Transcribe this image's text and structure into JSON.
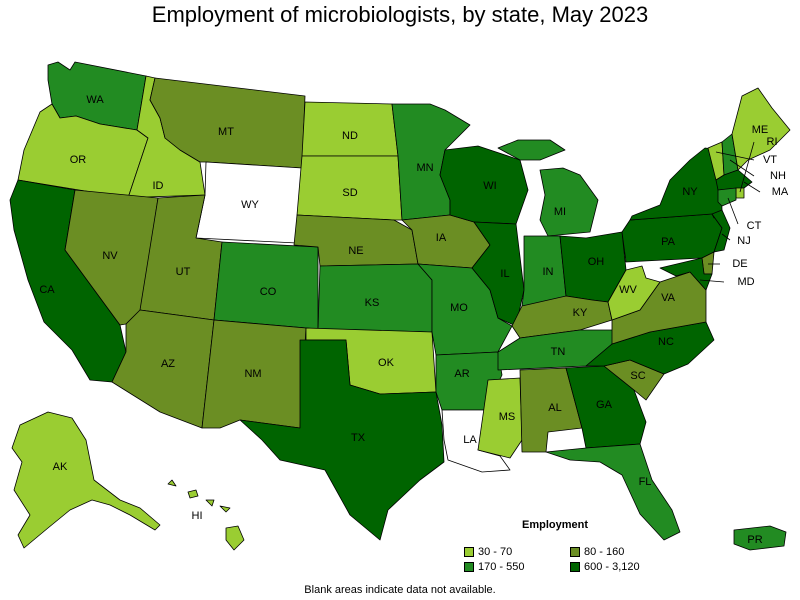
{
  "title": "Employment of microbiologists, by state, May 2023",
  "footnote": "Blank areas indicate data not available.",
  "legend": {
    "title": "Employment",
    "items": [
      {
        "label": "30 - 70",
        "color": "#9acd32"
      },
      {
        "label": "80 - 160",
        "color": "#6b8e23"
      },
      {
        "label": "170 - 550",
        "color": "#228b22"
      },
      {
        "label": "600 - 3,120",
        "color": "#006400"
      }
    ]
  },
  "colors": {
    "none": "#ffffff",
    "lv1": "#9acd32",
    "lv2": "#6b8e23",
    "lv3": "#228b22",
    "lv4": "#006400"
  },
  "states": [
    {
      "abbr": "WA",
      "level": 3
    },
    {
      "abbr": "OR",
      "level": 1
    },
    {
      "abbr": "CA",
      "level": 4
    },
    {
      "abbr": "ID",
      "level": 1
    },
    {
      "abbr": "NV",
      "level": 2
    },
    {
      "abbr": "MT",
      "level": 2
    },
    {
      "abbr": "WY",
      "level": 0
    },
    {
      "abbr": "UT",
      "level": 2
    },
    {
      "abbr": "AZ",
      "level": 2
    },
    {
      "abbr": "CO",
      "level": 3
    },
    {
      "abbr": "NM",
      "level": 2
    },
    {
      "abbr": "ND",
      "level": 1
    },
    {
      "abbr": "SD",
      "level": 1
    },
    {
      "abbr": "NE",
      "level": 2
    },
    {
      "abbr": "KS",
      "level": 3
    },
    {
      "abbr": "OK",
      "level": 1
    },
    {
      "abbr": "TX",
      "level": 4
    },
    {
      "abbr": "MN",
      "level": 3
    },
    {
      "abbr": "IA",
      "level": 2
    },
    {
      "abbr": "MO",
      "level": 3
    },
    {
      "abbr": "AR",
      "level": 3
    },
    {
      "abbr": "LA",
      "level": 0
    },
    {
      "abbr": "WI",
      "level": 4
    },
    {
      "abbr": "IL",
      "level": 4
    },
    {
      "abbr": "MI",
      "level": 3
    },
    {
      "abbr": "IN",
      "level": 3
    },
    {
      "abbr": "OH",
      "level": 4
    },
    {
      "abbr": "KY",
      "level": 2
    },
    {
      "abbr": "TN",
      "level": 3
    },
    {
      "abbr": "MS",
      "level": 1
    },
    {
      "abbr": "AL",
      "level": 2
    },
    {
      "abbr": "GA",
      "level": 4
    },
    {
      "abbr": "FL",
      "level": 3
    },
    {
      "abbr": "SC",
      "level": 2
    },
    {
      "abbr": "NC",
      "level": 4
    },
    {
      "abbr": "VA",
      "level": 2
    },
    {
      "abbr": "WV",
      "level": 1
    },
    {
      "abbr": "PA",
      "level": 4
    },
    {
      "abbr": "NY",
      "level": 4
    },
    {
      "abbr": "VT",
      "level": 1
    },
    {
      "abbr": "NH",
      "level": 3
    },
    {
      "abbr": "ME",
      "level": 1
    },
    {
      "abbr": "MA",
      "level": 4
    },
    {
      "abbr": "RI",
      "level": 1
    },
    {
      "abbr": "CT",
      "level": 3
    },
    {
      "abbr": "NJ",
      "level": 4
    },
    {
      "abbr": "DE",
      "level": 2
    },
    {
      "abbr": "MD",
      "level": 4
    },
    {
      "abbr": "AK",
      "level": 1
    },
    {
      "abbr": "HI",
      "level": 1
    },
    {
      "abbr": "PR",
      "level": 3
    }
  ]
}
